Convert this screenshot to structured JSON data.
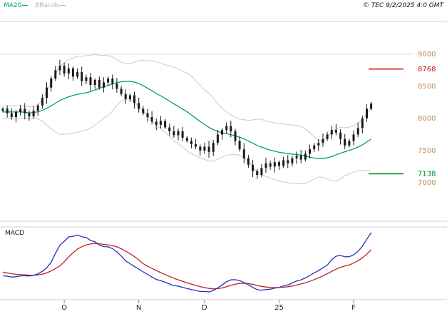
{
  "header": {
    "legend": [
      {
        "label": "MA20",
        "dash": "—",
        "color": "#00a651"
      },
      {
        "label": "BBands",
        "dash": "—",
        "color": "#b5b5b5"
      }
    ],
    "copyright": "© TEC 9/2/2025 4:0 GMT"
  },
  "macd_panel": {
    "label": "MACD"
  },
  "chart_data": {
    "type": "candlestick",
    "title": "",
    "x_axis": {
      "labels": [
        {
          "label": "O",
          "index": 14
        },
        {
          "label": "N",
          "index": 31
        },
        {
          "label": "D",
          "index": 46
        },
        {
          "label": "25",
          "index": 63
        },
        {
          "label": "F",
          "index": 80
        }
      ]
    },
    "price_axis": {
      "tick_labels": [
        9000,
        8500,
        8000,
        7500,
        7000
      ],
      "ylim": [
        6400,
        9510
      ],
      "gridlines": [
        9000
      ],
      "label_color": "#bf8a50"
    },
    "levels": [
      {
        "label": "8768",
        "value": 8768,
        "color": "#cc1111",
        "role": "resistance"
      },
      {
        "label": "7138",
        "value": 7138,
        "color": "#008822",
        "role": "support"
      }
    ],
    "candles": {
      "color": "#1a1a1a",
      "closes": [
        8150,
        8080,
        8020,
        8100,
        8150,
        8080,
        8030,
        8120,
        8200,
        8320,
        8480,
        8620,
        8750,
        8820,
        8700,
        8780,
        8650,
        8720,
        8580,
        8640,
        8520,
        8600,
        8480,
        8560,
        8620,
        8540,
        8460,
        8380,
        8300,
        8360,
        8240,
        8150,
        8080,
        8020,
        7950,
        7900,
        7960,
        7860,
        7800,
        7740,
        7800,
        7700,
        7650,
        7600,
        7560,
        7500,
        7560,
        7480,
        7620,
        7750,
        7820,
        7880,
        7800,
        7650,
        7520,
        7380,
        7280,
        7180,
        7120,
        7230,
        7300,
        7250,
        7320,
        7260,
        7350,
        7300,
        7380,
        7420,
        7360,
        7450,
        7520,
        7580,
        7620,
        7680,
        7750,
        7820,
        7780,
        7680,
        7580,
        7650,
        7750,
        7850,
        8000,
        8150,
        8230
      ]
    },
    "indicators": {
      "ma20": {
        "period": 20,
        "color": "#00a651"
      },
      "bbands": {
        "period": 20,
        "stddev": 2,
        "color": "#c9c9c9"
      },
      "macd": {
        "fast": 12,
        "slow": 26,
        "signal_period": 9,
        "macd_color": "#2433b8",
        "signal_color": "#bf2026"
      }
    }
  }
}
